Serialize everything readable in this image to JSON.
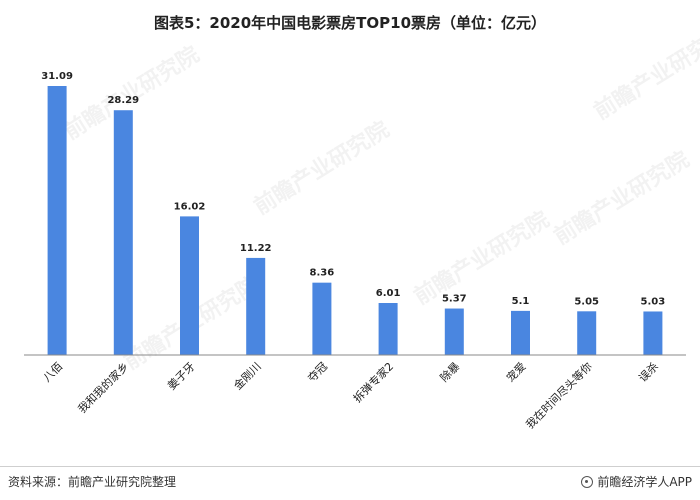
{
  "title": "图表5：2020年中国电影票房TOP10票房（单位：亿元）",
  "source": "资料来源：前瞻产业研究院整理",
  "brand": "前瞻经济学人APP",
  "brand_icon": "circle-logo-icon",
  "watermark_text": "前瞻产业研究院",
  "colors": {
    "bar": "#4a86e0",
    "axis": "#8a8a8a",
    "label": "#222222"
  },
  "chart_data": {
    "type": "bar",
    "title": "图表5：2020年中国电影票房TOP10票房（单位：亿元）",
    "categories": [
      "八佰",
      "我和我的家乡",
      "姜子牙",
      "金刚川",
      "夺冠",
      "拆弹专家2",
      "除暴",
      "宠爱",
      "我在时间尽头等你",
      "误杀"
    ],
    "values": [
      31.09,
      28.29,
      16.02,
      11.22,
      8.36,
      6.01,
      5.37,
      5.1,
      5.05,
      5.03
    ],
    "value_labels": [
      "31.09",
      "28.29",
      "16.02",
      "11.22",
      "8.36",
      "6.01",
      "5.37",
      "5.1",
      "5.05",
      "5.03"
    ],
    "ylim": [
      0,
      31.09
    ],
    "grid": false,
    "legend": "none"
  }
}
